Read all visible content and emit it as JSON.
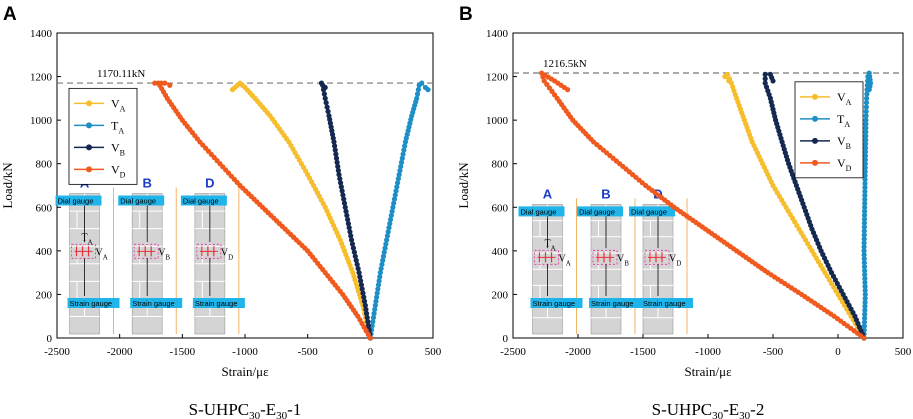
{
  "colors": {
    "VA": "#f6be2c",
    "TA": "#1e8fc6",
    "VB": "#142850",
    "VD": "#f05a1e",
    "gauge_bg": "#1fb5ea",
    "wall": "#d4d4d4",
    "dash": "#e0309a",
    "strain": "#e8303a"
  },
  "chart_data": [
    {
      "type": "scatter",
      "panel_label": "A",
      "title": "S-UHPC",
      "title_sub1": "30",
      "title_mid": "-E",
      "title_sub2": "30",
      "title_end": "-1",
      "xlabel": "Strain/με",
      "ylabel": "Load/kN",
      "xlim": [
        -2500,
        500
      ],
      "ylim": [
        0,
        1400
      ],
      "xticks": [
        "-2500",
        "-2000",
        "-1500",
        "-1000",
        "-500",
        "0",
        "500"
      ],
      "yticks": [
        "0",
        "200",
        "400",
        "600",
        "800",
        "1000",
        "1200",
        "1400"
      ],
      "peak_load": 1170.11,
      "peak_label": "1170.11kN",
      "legend": [
        {
          "main": "V",
          "sub": "A",
          "color_key": "VA"
        },
        {
          "main": "T",
          "sub": "A",
          "color_key": "TA"
        },
        {
          "main": "V",
          "sub": "B",
          "color_key": "VB"
        },
        {
          "main": "V",
          "sub": "D",
          "color_key": "VD"
        }
      ],
      "series": [
        {
          "name": "VA",
          "color_key": "VA",
          "points": [
            [
              0,
              0
            ],
            [
              -60,
              150
            ],
            [
              -140,
              300
            ],
            [
              -240,
              450
            ],
            [
              -360,
              600
            ],
            [
              -500,
              750
            ],
            [
              -650,
              900
            ],
            [
              -800,
              1020
            ],
            [
              -920,
              1100
            ],
            [
              -1000,
              1150
            ],
            [
              -1040,
              1170
            ],
            [
              -1080,
              1150
            ],
            [
              -1100,
              1140
            ]
          ]
        },
        {
          "name": "TA",
          "color_key": "TA",
          "points": [
            [
              0,
              0
            ],
            [
              40,
              150
            ],
            [
              80,
              300
            ],
            [
              130,
              450
            ],
            [
              180,
              600
            ],
            [
              230,
              750
            ],
            [
              280,
              900
            ],
            [
              330,
              1020
            ],
            [
              370,
              1100
            ],
            [
              390,
              1160
            ],
            [
              410,
              1170
            ],
            [
              440,
              1150
            ],
            [
              460,
              1140
            ]
          ]
        },
        {
          "name": "VB",
          "color_key": "VB",
          "points": [
            [
              0,
              0
            ],
            [
              -40,
              150
            ],
            [
              -90,
              300
            ],
            [
              -150,
              450
            ],
            [
              -200,
              600
            ],
            [
              -250,
              750
            ],
            [
              -290,
              900
            ],
            [
              -330,
              1020
            ],
            [
              -360,
              1100
            ],
            [
              -380,
              1160
            ],
            [
              -390,
              1170
            ],
            [
              -360,
              1150
            ]
          ]
        },
        {
          "name": "VD",
          "color_key": "VD",
          "points": [
            [
              0,
              0
            ],
            [
              -100,
              100
            ],
            [
              -220,
              200
            ],
            [
              -360,
              300
            ],
            [
              -500,
              400
            ],
            [
              -680,
              500
            ],
            [
              -860,
              600
            ],
            [
              -1040,
              700
            ],
            [
              -1200,
              800
            ],
            [
              -1360,
              900
            ],
            [
              -1500,
              1000
            ],
            [
              -1620,
              1100
            ],
            [
              -1680,
              1160
            ],
            [
              -1720,
              1170
            ],
            [
              -1640,
              1170
            ],
            [
              -1600,
              1160
            ]
          ]
        }
      ],
      "insets": [
        {
          "letter": "A",
          "gauge_top": "Dial gauge",
          "gauge_bottom": "Strain gauge",
          "v_main": "V",
          "v_sub": "A",
          "t_main": "T",
          "t_sub": "A"
        },
        {
          "letter": "B",
          "gauge_top": "Dial gauge",
          "gauge_bottom": "Strain gauge",
          "v_main": "V",
          "v_sub": "B",
          "t_main": "",
          "t_sub": ""
        },
        {
          "letter": "D",
          "gauge_top": "Dial gauge",
          "gauge_bottom": "Strain gauge",
          "v_main": "V",
          "v_sub": "D",
          "t_main": "",
          "t_sub": ""
        }
      ]
    },
    {
      "type": "scatter",
      "panel_label": "B",
      "title": "S-UHPC",
      "title_sub1": "30",
      "title_mid": "-E",
      "title_sub2": "30",
      "title_end": "-2",
      "xlabel": "Strain/με",
      "ylabel": "Load/kN",
      "xlim": [
        -2500,
        500
      ],
      "ylim": [
        0,
        1400
      ],
      "xticks": [
        "-2500",
        "-2000",
        "-1500",
        "-1000",
        "-500",
        "0",
        "500"
      ],
      "yticks": [
        "0",
        "200",
        "400",
        "600",
        "800",
        "1000",
        "1200",
        "1400"
      ],
      "peak_load": 1216.5,
      "peak_label": "1216.5kN",
      "legend": [
        {
          "main": "V",
          "sub": "A",
          "color_key": "VA"
        },
        {
          "main": "T",
          "sub": "A",
          "color_key": "TA"
        },
        {
          "main": "V",
          "sub": "B",
          "color_key": "VB"
        },
        {
          "main": "V",
          "sub": "D",
          "color_key": "VD"
        }
      ],
      "series": [
        {
          "name": "VA",
          "color_key": "VA",
          "points": [
            [
              200,
              0
            ],
            [
              100,
              100
            ],
            [
              0,
              200
            ],
            [
              -100,
              300
            ],
            [
              -200,
              400
            ],
            [
              -300,
              500
            ],
            [
              -400,
              600
            ],
            [
              -500,
              700
            ],
            [
              -580,
              800
            ],
            [
              -660,
              900
            ],
            [
              -720,
              1000
            ],
            [
              -780,
              1100
            ],
            [
              -820,
              1170
            ],
            [
              -850,
              1210
            ],
            [
              -870,
              1200
            ],
            [
              -840,
              1180
            ]
          ]
        },
        {
          "name": "TA",
          "color_key": "TA",
          "points": [
            [
              200,
              0
            ],
            [
              210,
              200
            ],
            [
              200,
              400
            ],
            [
              205,
              600
            ],
            [
              210,
              800
            ],
            [
              215,
              1000
            ],
            [
              220,
              1100
            ],
            [
              230,
              1200
            ],
            [
              240,
              1216
            ],
            [
              250,
              1170
            ],
            [
              240,
              1140
            ]
          ]
        },
        {
          "name": "VB",
          "color_key": "VB",
          "points": [
            [
              200,
              0
            ],
            [
              130,
              100
            ],
            [
              40,
              200
            ],
            [
              -50,
              300
            ],
            [
              -130,
              400
            ],
            [
              -200,
              500
            ],
            [
              -260,
              600
            ],
            [
              -320,
              700
            ],
            [
              -380,
              800
            ],
            [
              -430,
              900
            ],
            [
              -480,
              1000
            ],
            [
              -520,
              1100
            ],
            [
              -560,
              1170
            ],
            [
              -560,
              1210
            ],
            [
              -520,
              1210
            ],
            [
              -500,
              1180
            ]
          ]
        },
        {
          "name": "VD",
          "color_key": "VD",
          "points": [
            [
              200,
              0
            ],
            [
              -30,
              100
            ],
            [
              -280,
              200
            ],
            [
              -540,
              300
            ],
            [
              -780,
              400
            ],
            [
              -1020,
              500
            ],
            [
              -1260,
              600
            ],
            [
              -1480,
              700
            ],
            [
              -1680,
              800
            ],
            [
              -1880,
              900
            ],
            [
              -2040,
              1000
            ],
            [
              -2160,
              1100
            ],
            [
              -2260,
              1180
            ],
            [
              -2280,
              1216
            ],
            [
              -2180,
              1180
            ],
            [
              -2080,
              1140
            ]
          ]
        }
      ],
      "insets": [
        {
          "letter": "A",
          "gauge_top": "Dial gauge",
          "gauge_bottom": "Strain gauge",
          "v_main": "V",
          "v_sub": "A",
          "t_main": "T",
          "t_sub": "A"
        },
        {
          "letter": "B",
          "gauge_top": "Dial gauge",
          "gauge_bottom": "Strain gauge",
          "v_main": "V",
          "v_sub": "B",
          "t_main": "",
          "t_sub": ""
        },
        {
          "letter": "D",
          "gauge_top": "Dial gauge",
          "gauge_bottom": "Strain gauge",
          "v_main": "V",
          "v_sub": "D",
          "t_main": "",
          "t_sub": ""
        }
      ]
    }
  ]
}
